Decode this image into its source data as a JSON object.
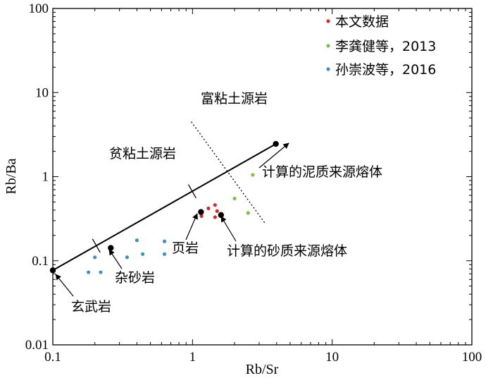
{
  "chart_data": {
    "type": "scatter",
    "title": "",
    "xlabel": "Rb/Sr",
    "ylabel": "Rb/Ba",
    "xscale": "log",
    "yscale": "log",
    "xlim": [
      0.1,
      100
    ],
    "ylim": [
      0.01,
      100
    ],
    "xticks": [
      0.1,
      1,
      10,
      100
    ],
    "xtick_labels": [
      "0.1",
      "1",
      "10",
      "100"
    ],
    "yticks": [
      0.01,
      0.1,
      1,
      10,
      100
    ],
    "ytick_labels": [
      "0.01",
      "0.1",
      "1",
      "10",
      "100"
    ],
    "grid": false,
    "legend_position": "top-right",
    "series": [
      {
        "name": "本文数据",
        "color": "#d62a2a",
        "points": [
          [
            1.16,
            0.34
          ],
          [
            1.3,
            0.42
          ],
          [
            1.45,
            0.46
          ],
          [
            1.5,
            0.39
          ],
          [
            1.45,
            0.33
          ]
        ]
      },
      {
        "name": "李龚健等，2013",
        "color": "#7cc242",
        "points": [
          [
            2.7,
            1.05
          ],
          [
            2.0,
            0.55
          ],
          [
            2.5,
            0.37
          ]
        ]
      },
      {
        "name": "孙崇波等，2016",
        "color": "#3d8fc9",
        "points": [
          [
            0.2,
            0.11
          ],
          [
            0.18,
            0.073
          ],
          [
            0.22,
            0.073
          ],
          [
            0.34,
            0.11
          ],
          [
            0.4,
            0.175
          ],
          [
            0.44,
            0.12
          ],
          [
            0.63,
            0.17
          ],
          [
            0.63,
            0.12
          ]
        ]
      }
    ],
    "reference_points": [
      {
        "label": "玄武岩",
        "x": 0.1,
        "y": 0.077
      },
      {
        "label": "杂砂岩",
        "x": 0.26,
        "y": 0.142
      },
      {
        "label": "页岩",
        "x": 1.15,
        "y": 0.38
      },
      {
        "label": "计算的砂质来源熔体",
        "x": 1.6,
        "y": 0.35
      },
      {
        "label": "计算的泥质来源熔体",
        "x": 3.95,
        "y": 2.45
      }
    ],
    "mixing_line": {
      "from": [
        0.1,
        0.077
      ],
      "to": [
        3.95,
        2.45
      ]
    },
    "divider_line": {
      "from": [
        0.98,
        4.5
      ],
      "to": [
        3.3,
        0.28
      ]
    },
    "region_labels": [
      "富粘土源岩",
      "贫粘土源岩"
    ]
  }
}
